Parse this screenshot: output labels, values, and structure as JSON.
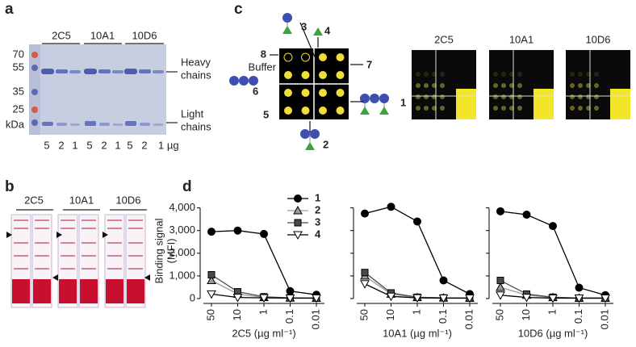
{
  "panel_a": {
    "label": "a",
    "clones": [
      "2C5",
      "10A1",
      "10D6"
    ],
    "markers": [
      "70",
      "55",
      "35",
      "25",
      "kDa"
    ],
    "heavy": [
      "Heavy",
      "chains"
    ],
    "light": [
      "Light",
      "chains"
    ],
    "amounts": [
      "5",
      "2",
      "1",
      "5",
      "2",
      "1",
      "5",
      "2",
      "1 µg"
    ]
  },
  "panel_b": {
    "label": "b",
    "clones": [
      "2C5",
      "10A1",
      "10D6"
    ]
  },
  "panel_c": {
    "label": "c",
    "array_labels": [
      "3",
      "4",
      "8",
      "Buffer",
      "7",
      "6",
      "5",
      "1",
      "2"
    ],
    "clones": [
      "2C5",
      "10A1",
      "10D6"
    ]
  },
  "panel_d": {
    "label": "d"
  },
  "chart_data": [
    {
      "type": "line",
      "xlabel": "2C5 (µg ml⁻¹)",
      "ylabel": [
        "Binding signal",
        "(MFI)"
      ],
      "categories": [
        "50",
        "10",
        "1",
        "0.1",
        "0.01"
      ],
      "ylim": [
        0,
        4200
      ],
      "yticks": [
        0,
        {
          "value": 1000,
          "label": "1,000"
        },
        {
          "value": 2000,
          "label": "2,000"
        },
        {
          "value": 3000,
          "label": "3,000"
        },
        {
          "value": 4000,
          "label": "4,000"
        }
      ],
      "series": [
        {
          "name": "1",
          "color": "#000000",
          "line_color": "#000000",
          "marker": "circle",
          "values": [
            2950,
            3000,
            2850,
            330,
            170
          ]
        },
        {
          "name": "2",
          "color": "#9a9a9a",
          "line_color": "#9a9a9a",
          "marker": "triangle",
          "values": [
            800,
            200,
            50,
            30,
            20
          ]
        },
        {
          "name": "3",
          "color": "#4a4a4a",
          "line_color": "#4a4a4a",
          "marker": "square",
          "values": [
            1050,
            300,
            80,
            30,
            20
          ]
        },
        {
          "name": "4",
          "color": "#ffffff",
          "line_color": "#000000",
          "marker": "triangle-down",
          "values": [
            200,
            50,
            30,
            20,
            20
          ]
        }
      ]
    },
    {
      "type": "line",
      "xlabel": "10A1 (µg ml⁻¹)",
      "categories": [
        "50",
        "10",
        "1",
        "0.1",
        "0.01"
      ],
      "ylim": [
        0,
        4200
      ],
      "series": [
        {
          "color": "#000000",
          "line_color": "#000000",
          "marker": "circle",
          "values": [
            3750,
            4050,
            3400,
            800,
            200
          ]
        },
        {
          "color": "#9a9a9a",
          "line_color": "#9a9a9a",
          "marker": "triangle",
          "values": [
            1000,
            200,
            50,
            30,
            20
          ]
        },
        {
          "color": "#4a4a4a",
          "line_color": "#4a4a4a",
          "marker": "square",
          "values": [
            1150,
            250,
            60,
            30,
            20
          ]
        },
        {
          "color": "#ffffff",
          "line_color": "#000000",
          "marker": "triangle-down",
          "values": [
            650,
            100,
            30,
            20,
            20
          ]
        }
      ]
    },
    {
      "type": "line",
      "xlabel": "10D6 (µg ml⁻¹)",
      "categories": [
        "50",
        "10",
        "1",
        "0.1",
        "0.01"
      ],
      "ylim": [
        0,
        4200
      ],
      "series": [
        {
          "color": "#000000",
          "line_color": "#000000",
          "marker": "circle",
          "values": [
            3850,
            3700,
            3200,
            480,
            150
          ]
        },
        {
          "color": "#9a9a9a",
          "line_color": "#9a9a9a",
          "marker": "triangle",
          "values": [
            500,
            150,
            50,
            20,
            20
          ]
        },
        {
          "color": "#4a4a4a",
          "line_color": "#4a4a4a",
          "marker": "square",
          "values": [
            800,
            200,
            60,
            20,
            20
          ]
        },
        {
          "color": "#ffffff",
          "line_color": "#000000",
          "marker": "triangle-down",
          "values": [
            150,
            50,
            20,
            20,
            20
          ]
        }
      ]
    }
  ]
}
